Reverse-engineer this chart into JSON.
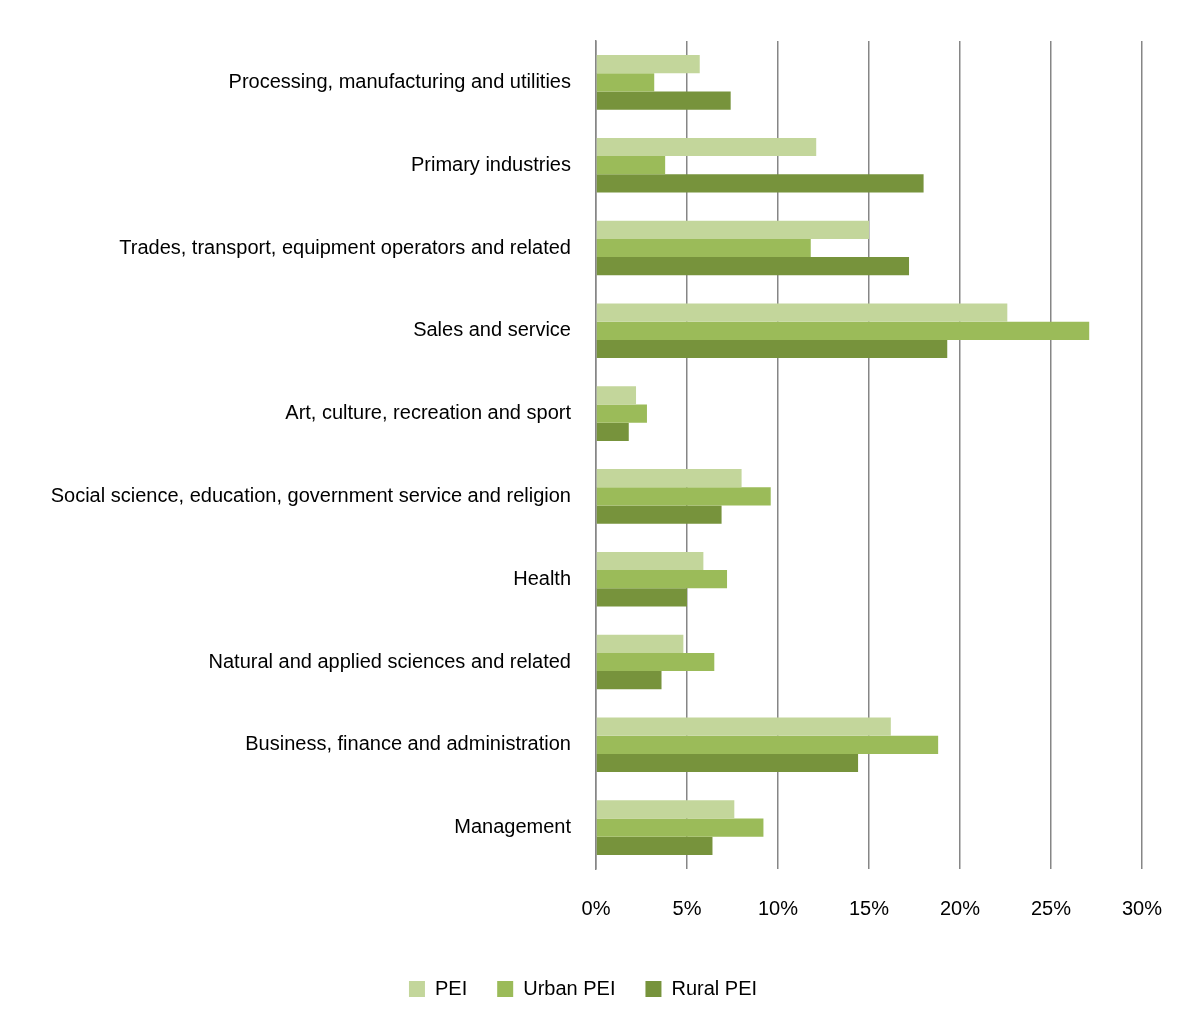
{
  "chart_data": {
    "type": "bar",
    "orientation": "horizontal",
    "categories": [
      "Processing, manufacturing and utilities",
      "Primary industries",
      "Trades, transport, equipment operators and related",
      "Sales and service",
      "Art, culture, recreation and sport",
      "Social science, education, government service and religion",
      "Health",
      "Natural and applied sciences and related",
      "Business, finance and administration",
      "Management"
    ],
    "series": [
      {
        "name": "PEI",
        "color": "#c3d69b",
        "values": [
          5.7,
          12.1,
          15.0,
          22.6,
          2.2,
          8.0,
          5.9,
          4.8,
          16.2,
          7.6
        ]
      },
      {
        "name": "Urban PEI",
        "color": "#9bbb59",
        "values": [
          3.2,
          3.8,
          11.8,
          27.1,
          2.8,
          9.6,
          7.2,
          6.5,
          18.8,
          9.2
        ]
      },
      {
        "name": "Rural PEI",
        "color": "#77933c",
        "values": [
          7.4,
          18.0,
          17.2,
          19.3,
          1.8,
          6.9,
          5.0,
          3.6,
          14.4,
          6.4
        ]
      }
    ],
    "xlim": [
      0,
      30
    ],
    "xticks": [
      {
        "value": 0,
        "label": "0%"
      },
      {
        "value": 5,
        "label": "5%"
      },
      {
        "value": 10,
        "label": "10%"
      },
      {
        "value": 15,
        "label": "15%"
      },
      {
        "value": 20,
        "label": "20%"
      },
      {
        "value": 25,
        "label": "25%"
      },
      {
        "value": 30,
        "label": "30%"
      }
    ],
    "grid": "x",
    "legend": "bottom"
  }
}
